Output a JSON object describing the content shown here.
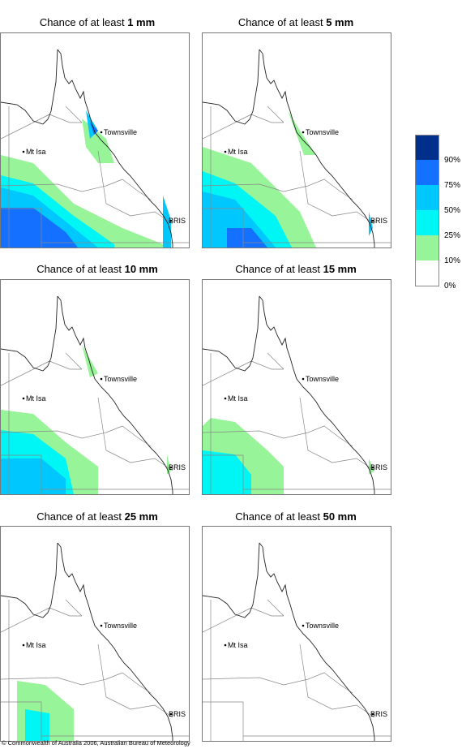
{
  "panels": [
    {
      "prefix": "Chance of at least ",
      "amount": "1 mm",
      "cities": {
        "townsville": "Townsville",
        "mtisa": "Mt Isa",
        "bris": "BRIS"
      },
      "zones": [
        {
          "color": "#98f498",
          "points": [
            [
              0,
              150
            ],
            [
              40,
              160
            ],
            [
              90,
              210
            ],
            [
              150,
              240
            ],
            [
              200,
              260
            ],
            [
              200,
              264
            ],
            [
              0,
              264
            ]
          ]
        },
        {
          "color": "#00f5f5",
          "points": [
            [
              0,
              175
            ],
            [
              40,
              185
            ],
            [
              90,
              225
            ],
            [
              140,
              260
            ],
            [
              140,
              264
            ],
            [
              0,
              264
            ]
          ]
        },
        {
          "color": "#00c8ff",
          "points": [
            [
              0,
              190
            ],
            [
              40,
              200
            ],
            [
              90,
              240
            ],
            [
              120,
              264
            ],
            [
              0,
              264
            ]
          ]
        },
        {
          "color": "#1470ff",
          "points": [
            [
              0,
              215
            ],
            [
              40,
              215
            ],
            [
              80,
              245
            ],
            [
              95,
              264
            ],
            [
              0,
              264
            ]
          ]
        },
        {
          "color": "#98f498",
          "points": [
            [
              100,
              105
            ],
            [
              130,
              130
            ],
            [
              140,
              160
            ],
            [
              120,
              160
            ],
            [
              105,
              140
            ]
          ]
        },
        {
          "color": "#00c8ff",
          "points": [
            [
              105,
              95
            ],
            [
              120,
              120
            ],
            [
              110,
              130
            ]
          ]
        },
        {
          "color": "#1470ff",
          "points": [
            [
              110,
              110
            ],
            [
              120,
              120
            ],
            [
              115,
              125
            ]
          ]
        },
        {
          "color": "#00c8ff",
          "points": [
            [
              200,
              200
            ],
            [
              210,
              230
            ],
            [
              210,
              264
            ],
            [
              200,
              264
            ]
          ]
        }
      ]
    },
    {
      "prefix": "Chance of at least ",
      "amount": "5 mm",
      "cities": {
        "townsville": "Townsville",
        "mtisa": "Mt Isa",
        "bris": "BRIS"
      },
      "zones": [
        {
          "color": "#98f498",
          "points": [
            [
              0,
              140
            ],
            [
              60,
              160
            ],
            [
              120,
              220
            ],
            [
              140,
              264
            ],
            [
              0,
              264
            ]
          ]
        },
        {
          "color": "#00f5f5",
          "points": [
            [
              0,
              170
            ],
            [
              40,
              185
            ],
            [
              90,
              225
            ],
            [
              110,
              264
            ],
            [
              0,
              264
            ]
          ]
        },
        {
          "color": "#00c8ff",
          "points": [
            [
              0,
              195
            ],
            [
              40,
              205
            ],
            [
              70,
              240
            ],
            [
              90,
              264
            ],
            [
              0,
              264
            ]
          ]
        },
        {
          "color": "#1470ff",
          "points": [
            [
              30,
              240
            ],
            [
              60,
              240
            ],
            [
              80,
              264
            ],
            [
              30,
              264
            ]
          ]
        },
        {
          "color": "#98f498",
          "points": [
            [
              105,
              95
            ],
            [
              120,
              120
            ],
            [
              140,
              150
            ],
            [
              125,
              150
            ]
          ]
        },
        {
          "color": "#00c8ff",
          "points": [
            [
              205,
              220
            ],
            [
              210,
              240
            ],
            [
              205,
              250
            ]
          ]
        }
      ]
    },
    {
      "prefix": "Chance of at least ",
      "amount": "10 mm",
      "cities": {
        "townsville": "Townsville",
        "mtisa": "Mt Isa",
        "bris": "BRIS"
      },
      "zones": [
        {
          "color": "#98f498",
          "points": [
            [
              0,
              160
            ],
            [
              40,
              165
            ],
            [
              80,
              200
            ],
            [
              120,
              230
            ],
            [
              120,
              264
            ],
            [
              0,
              264
            ]
          ]
        },
        {
          "color": "#00f5f5",
          "points": [
            [
              0,
              185
            ],
            [
              40,
              190
            ],
            [
              80,
              220
            ],
            [
              90,
              264
            ],
            [
              0,
              264
            ]
          ]
        },
        {
          "color": "#00c8ff",
          "points": [
            [
              0,
              220
            ],
            [
              50,
              220
            ],
            [
              80,
              245
            ],
            [
              80,
              264
            ],
            [
              0,
              264
            ]
          ]
        },
        {
          "color": "#98f498",
          "points": [
            [
              100,
              80
            ],
            [
              120,
              115
            ],
            [
              110,
              120
            ]
          ]
        },
        {
          "color": "#98f498",
          "points": [
            [
              205,
              215
            ],
            [
              210,
              235
            ],
            [
              205,
              240
            ]
          ]
        }
      ]
    },
    {
      "prefix": "Chance of at least ",
      "amount": "15 mm",
      "cities": {
        "townsville": "Townsville",
        "mtisa": "Mt Isa",
        "bris": "BRIS"
      },
      "zones": [
        {
          "color": "#98f498",
          "points": [
            [
              10,
              170
            ],
            [
              40,
              175
            ],
            [
              80,
              210
            ],
            [
              100,
              230
            ],
            [
              100,
              264
            ],
            [
              0,
              264
            ],
            [
              0,
              180
            ]
          ]
        },
        {
          "color": "#00f5f5",
          "points": [
            [
              0,
              210
            ],
            [
              40,
              215
            ],
            [
              60,
              240
            ],
            [
              60,
              264
            ],
            [
              0,
              264
            ]
          ]
        },
        {
          "color": "#98f498",
          "points": [
            [
              205,
              220
            ],
            [
              212,
              235
            ],
            [
              205,
              240
            ]
          ]
        }
      ]
    },
    {
      "prefix": "Chance of at least ",
      "amount": "25 mm",
      "cities": {
        "townsville": "Townsville",
        "mtisa": "Mt Isa",
        "bris": "BRIS"
      },
      "zones": [
        {
          "color": "#98f498",
          "points": [
            [
              20,
              190
            ],
            [
              55,
              195
            ],
            [
              90,
              225
            ],
            [
              90,
              264
            ],
            [
              20,
              264
            ]
          ]
        },
        {
          "color": "#00f5f5",
          "points": [
            [
              30,
              225
            ],
            [
              60,
              230
            ],
            [
              60,
              264
            ],
            [
              30,
              264
            ]
          ]
        }
      ]
    },
    {
      "prefix": "Chance of at least ",
      "amount": "50 mm",
      "cities": {
        "townsville": "Townsville",
        "mtisa": "Mt Isa",
        "bris": "BRIS"
      },
      "zones": []
    }
  ],
  "legend": {
    "colors": [
      "#00308c",
      "#1470ff",
      "#00c8ff",
      "#00f5f5",
      "#98f498",
      "#ffffff"
    ],
    "labels": [
      "90%",
      "75%",
      "50%",
      "25%",
      "10%",
      "0%"
    ]
  },
  "copyright": "© Commonwealth of Australia 2006, Australian Bureau of Meteorology"
}
